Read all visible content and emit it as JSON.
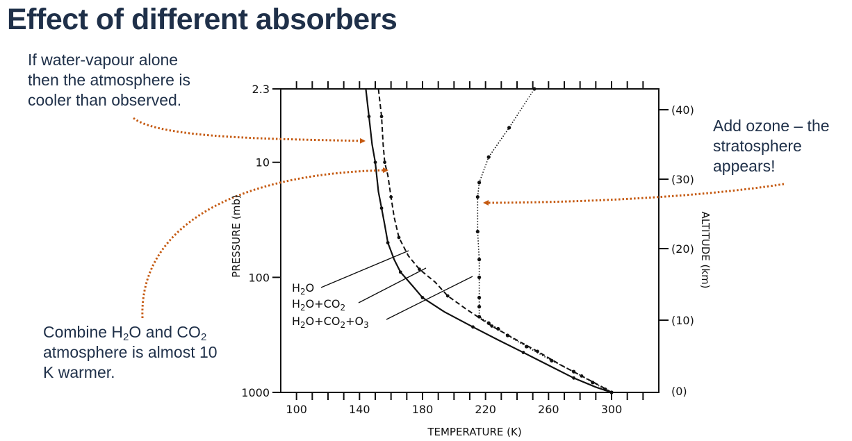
{
  "slide_title": "Effect of different absorbers",
  "annotations": {
    "water_vapour": [
      "If water-vapour alone",
      "then the atmosphere is",
      "cooler than observed."
    ],
    "ozone": [
      "Add ozone – the",
      "stratosphere",
      "appears!"
    ],
    "combine": {
      "line1_a": "Combine H",
      "line1_sub1": "2",
      "line1_b": "O and CO",
      "line1_sub2": "2",
      "line2": "atmosphere is almost 10",
      "line3": "K warmer."
    }
  },
  "colors": {
    "title": "#1f3049",
    "text": "#1f3049",
    "arrow": "#c55a11",
    "curve": "#111111"
  },
  "chart_data": {
    "type": "line",
    "xlabel": "TEMPERATURE (K)",
    "ylabel": "PRESSURE (mb)",
    "y2label": "ALTITUDE (km)",
    "x_scale": "linear",
    "y_scale": "log",
    "y_reversed": true,
    "xlim": [
      90,
      330
    ],
    "ylim": [
      1000,
      2.3
    ],
    "x_ticks": [
      "100",
      "140",
      "180",
      "220",
      "260",
      "300"
    ],
    "y_ticks": [
      {
        "value": 2.3,
        "label": "2.3"
      },
      {
        "value": 10,
        "label": "10"
      },
      {
        "value": 100,
        "label": "100"
      },
      {
        "value": 1000,
        "label": "1000"
      }
    ],
    "y2_ticks": [
      "(40)",
      "(30)",
      "(20)",
      "(10)",
      "(0)"
    ],
    "series": [
      {
        "name": "H2O",
        "style": "solid",
        "points": [
          [
            300,
            1000
          ],
          [
            290,
            900
          ],
          [
            276,
            750
          ],
          [
            262,
            600
          ],
          [
            244,
            450
          ],
          [
            228,
            350
          ],
          [
            212,
            270
          ],
          [
            194,
            200
          ],
          [
            180,
            150
          ],
          [
            174,
            120
          ],
          [
            166,
            90
          ],
          [
            162,
            70
          ],
          [
            158,
            50
          ],
          [
            156,
            35
          ],
          [
            154,
            25
          ],
          [
            152,
            18
          ],
          [
            150,
            10
          ],
          [
            148,
            7
          ],
          [
            146,
            4
          ],
          [
            144,
            2.3
          ]
        ]
      },
      {
        "name": "H2O+CO2",
        "style": "dashed",
        "points": [
          [
            300,
            1000
          ],
          [
            293,
            880
          ],
          [
            281,
            720
          ],
          [
            268,
            580
          ],
          [
            253,
            440
          ],
          [
            238,
            340
          ],
          [
            224,
            265
          ],
          [
            208,
            190
          ],
          [
            196,
            145
          ],
          [
            188,
            110
          ],
          [
            178,
            85
          ],
          [
            171,
            65
          ],
          [
            165,
            45
          ],
          [
            162,
            30
          ],
          [
            160,
            20
          ],
          [
            158,
            13
          ],
          [
            156,
            10
          ],
          [
            155,
            7
          ],
          [
            154,
            4
          ],
          [
            152,
            2.3
          ]
        ]
      },
      {
        "name": "H2O+CO2+O3",
        "style": "dotted",
        "points": [
          [
            300,
            1000
          ],
          [
            296,
            940
          ],
          [
            288,
            820
          ],
          [
            276,
            660
          ],
          [
            262,
            530
          ],
          [
            246,
            400
          ],
          [
            234,
            320
          ],
          [
            228,
            280
          ],
          [
            222,
            250
          ],
          [
            216,
            220
          ],
          [
            216,
            180
          ],
          [
            216,
            150
          ],
          [
            216,
            100
          ],
          [
            216,
            70
          ],
          [
            215,
            40
          ],
          [
            215,
            20
          ],
          [
            216,
            15
          ],
          [
            222,
            9
          ],
          [
            235,
            5
          ],
          [
            251,
            2.3
          ]
        ]
      }
    ],
    "series_labels": [
      {
        "base": "H",
        "sub": "2",
        "rest": "O"
      },
      {
        "base": "H",
        "sub": "2",
        "rest": "O+CO",
        "sub2": "2"
      },
      {
        "base": "H",
        "sub": "2",
        "rest": "O+CO",
        "sub2": "2",
        "rest2": "+O",
        "sub3": "3"
      }
    ]
  }
}
